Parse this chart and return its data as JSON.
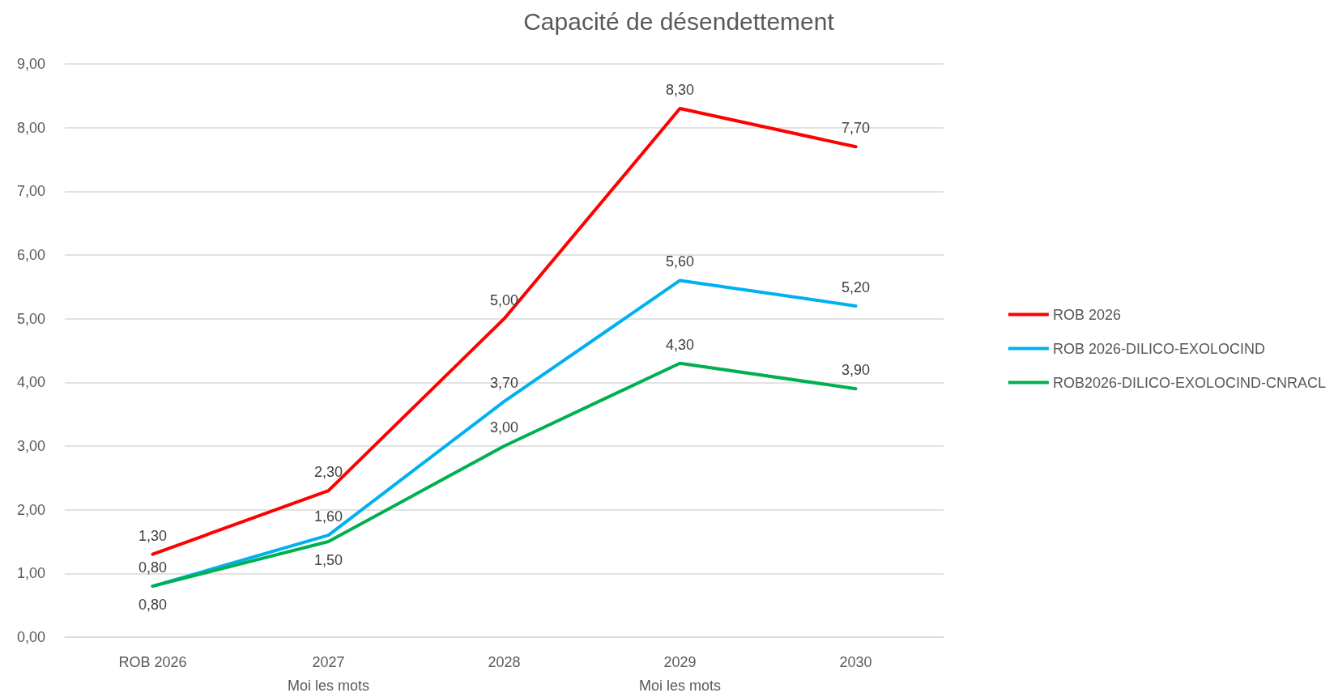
{
  "chart_data": {
    "type": "line",
    "title": "Capacité de désendettement",
    "categories": [
      "ROB 2026",
      "2027\nMoi les mots",
      "2028",
      "2029\nMoi les mots",
      "2030"
    ],
    "series": [
      {
        "name": "ROB 2026",
        "color": "#ff0000",
        "values": [
          1.3,
          2.3,
          5.0,
          8.3,
          7.7
        ],
        "value_labels": [
          "1,30",
          "2,30",
          "5,00",
          "8,30",
          "7,70"
        ]
      },
      {
        "name": "ROB 2026-DILICO-EXOLOCIND",
        "color": "#00b0f0",
        "values": [
          0.8,
          1.6,
          3.7,
          5.6,
          5.2
        ],
        "value_labels": [
          "0,80",
          "1,60",
          "3,70",
          "5,60",
          "5,20"
        ]
      },
      {
        "name": "ROB2026-DILICO-EXOLOCIND-CNRACL",
        "color": "#00b050",
        "values": [
          0.8,
          1.5,
          3.0,
          4.3,
          3.9
        ],
        "value_labels": [
          "0,80",
          "1,50",
          "3,00",
          "4,30",
          "3,90"
        ]
      }
    ],
    "ylim": [
      0,
      9
    ],
    "yticks": [
      {
        "value": 0,
        "label": "0,00"
      },
      {
        "value": 1,
        "label": "1,00"
      },
      {
        "value": 2,
        "label": "2,00"
      },
      {
        "value": 3,
        "label": "3,00"
      },
      {
        "value": 4,
        "label": "4,00"
      },
      {
        "value": 5,
        "label": "5,00"
      },
      {
        "value": 6,
        "label": "6,00"
      },
      {
        "value": 7,
        "label": "7,00"
      },
      {
        "value": 8,
        "label": "8,00"
      },
      {
        "value": 9,
        "label": "9,00"
      }
    ],
    "grid": "y",
    "legend": "right",
    "marker": "none",
    "line_style": "solid"
  }
}
